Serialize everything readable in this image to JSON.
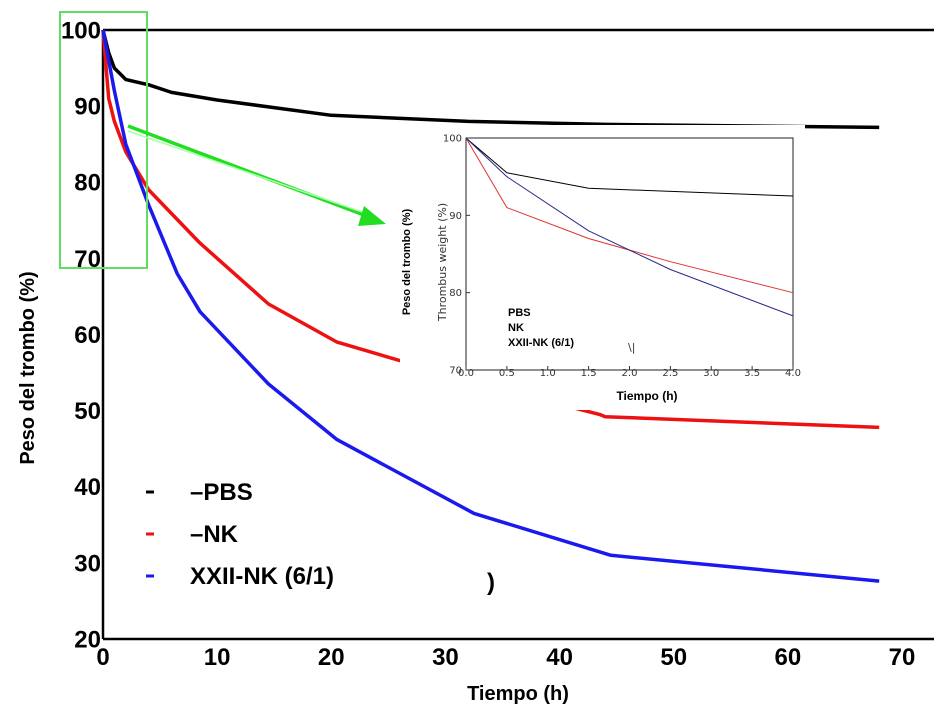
{
  "chart_data": [
    {
      "type": "line",
      "xlabel": "Tiempo (h)",
      "ylabel": "Peso del trombo (%)",
      "xlim": [
        0,
        70
      ],
      "ylim": [
        20,
        100
      ],
      "x_ticks": [
        "0",
        "10",
        "20",
        "30",
        "40",
        "50",
        "60",
        "70"
      ],
      "y_ticks": [
        "20",
        "30",
        "40",
        "50",
        "60",
        "70",
        "80",
        "90",
        "100"
      ],
      "grid": false,
      "legend_position": "bottom-left",
      "series": [
        {
          "name": "–PBS",
          "color": "#000000",
          "x": [
            0,
            0.5,
            1,
            2,
            4,
            6,
            10,
            20,
            32,
            44,
            68
          ],
          "y": [
            100,
            97,
            95,
            93.5,
            92.8,
            91.8,
            90.8,
            88.8,
            88,
            87.6,
            87.2
          ]
        },
        {
          "name": "–NK",
          "color": "#ee1111",
          "x": [
            0,
            0.5,
            1,
            2,
            4,
            8.5,
            14.5,
            20.5,
            33,
            43.5,
            44,
            68
          ],
          "y": [
            100,
            91,
            88,
            84,
            79,
            72,
            64,
            59,
            53.5,
            49.5,
            49.2,
            47.8
          ]
        },
        {
          "name": "XXII-NK (6/1)",
          "color": "#1a1aee",
          "x": [
            0,
            0.5,
            1,
            2,
            4,
            6.5,
            8.5,
            14.5,
            20.5,
            32.5,
            44.5,
            68
          ],
          "y": [
            100,
            96,
            92,
            85,
            77,
            68,
            63,
            53.5,
            46.2,
            36.5,
            31,
            27.6
          ]
        }
      ],
      "annotations": [
        ")"
      ]
    },
    {
      "type": "line",
      "xlabel": "Tiempo (h)",
      "ylabel": "Peso del trombo (%)",
      "ylabel_secondary": "Thrombus weight (%)",
      "xlim": [
        0,
        4
      ],
      "ylim": [
        70,
        100
      ],
      "x_ticks": [
        "0.0",
        "0.5",
        "1.0",
        "1.5",
        "2.0",
        "2.5",
        "3.0",
        "3.5",
        "4.0"
      ],
      "y_ticks": [
        "70",
        "80",
        "90",
        "100"
      ],
      "legend": [
        "PBS",
        "NK",
        "XXII-NK (6/1)"
      ],
      "annotations": [
        "\\|"
      ],
      "series": [
        {
          "color": "#000000",
          "x": [
            0,
            0.5,
            1.5,
            4
          ],
          "y": [
            100,
            95.5,
            93.5,
            92.5
          ]
        },
        {
          "color": "#dd3333",
          "x": [
            0,
            0.5,
            1.5,
            2.5,
            4
          ],
          "y": [
            100,
            91,
            87,
            84,
            80
          ]
        },
        {
          "color": "#2a2a8a",
          "x": [
            0,
            0.5,
            1.5,
            2.5,
            4
          ],
          "y": [
            100,
            95,
            88,
            83,
            77
          ]
        }
      ]
    }
  ]
}
